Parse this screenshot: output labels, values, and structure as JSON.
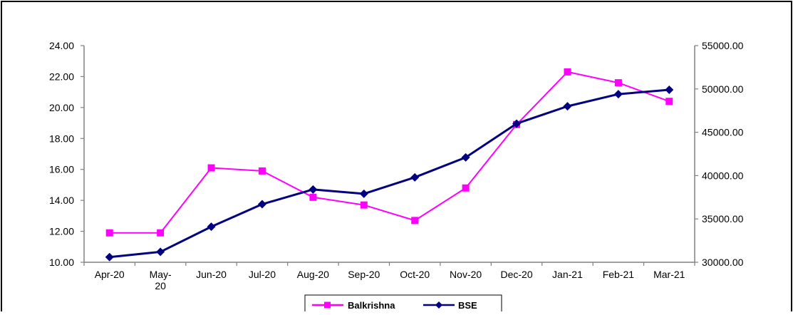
{
  "chart_data": {
    "type": "line",
    "categories": [
      [
        "Apr-20"
      ],
      [
        "May-",
        "20"
      ],
      [
        "Jun-20"
      ],
      [
        "Jul-20"
      ],
      [
        "Aug-20"
      ],
      [
        "Sep-20"
      ],
      [
        "Oct-20"
      ],
      [
        "Nov-20"
      ],
      [
        "Dec-20"
      ],
      [
        "Jan-21"
      ],
      [
        "Feb-21"
      ],
      [
        "Mar-21"
      ]
    ],
    "series": [
      {
        "name": "Balkrishna",
        "axis": "left",
        "color": "#ff00ff",
        "marker": "square",
        "values": [
          11.9,
          11.9,
          16.1,
          15.9,
          14.2,
          13.7,
          12.7,
          14.8,
          18.9,
          22.3,
          21.6,
          20.4
        ]
      },
      {
        "name": "BSE",
        "axis": "right",
        "color": "#000080",
        "marker": "diamond",
        "values": [
          30600,
          31200,
          34100,
          36700,
          38400,
          37900,
          39800,
          42100,
          46000,
          48000,
          49400,
          49900
        ]
      }
    ],
    "left_axis": {
      "min": 10,
      "max": 24,
      "ticks": [
        "10.00",
        "12.00",
        "14.00",
        "16.00",
        "18.00",
        "20.00",
        "22.00",
        "24.00"
      ]
    },
    "right_axis": {
      "min": 30000,
      "max": 55000,
      "ticks": [
        "30000.00",
        "35000.00",
        "40000.00",
        "45000.00",
        "50000.00",
        "55000.00"
      ]
    },
    "grid": false,
    "legend_position": "bottom-center"
  }
}
